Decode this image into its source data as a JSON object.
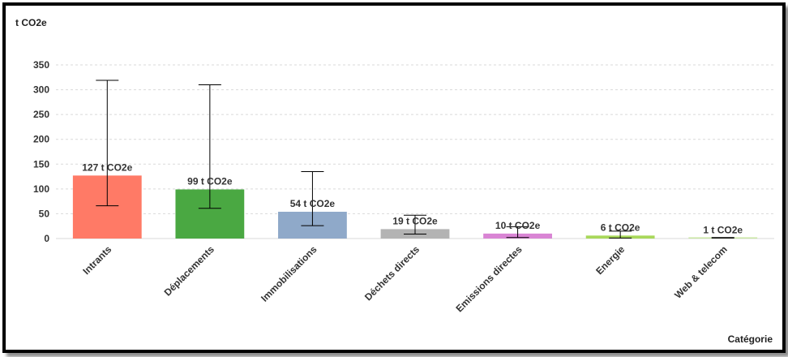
{
  "chart_data": {
    "type": "bar",
    "ylabel": "t CO2e",
    "xlabel": "Catégorie",
    "ylim": [
      0,
      350
    ],
    "yticks": [
      0,
      50,
      100,
      150,
      200,
      250,
      300,
      350
    ],
    "grid": true,
    "categories": [
      "Intrants",
      "Déplacements",
      "Immobilisations",
      "Déchets directs",
      "Emissions directes",
      "Energie",
      "Web & telecom"
    ],
    "values": [
      127,
      99,
      54,
      19,
      10,
      6,
      1
    ],
    "data_labels": [
      "127 t CO2e",
      "99 t CO2e",
      "54 t CO2e",
      "19 t CO2e",
      "10 t CO2e",
      "6 t CO2e",
      "1 t CO2e"
    ],
    "error_low": [
      66,
      61,
      26,
      9,
      2,
      1,
      1
    ],
    "error_high": [
      319,
      310,
      135,
      47,
      24,
      15,
      2
    ],
    "colors": [
      "#ff7a66",
      "#4aa842",
      "#8fa9c9",
      "#b3b3b3",
      "#d985d4",
      "#a8d85a",
      "#c9e6a3"
    ]
  }
}
